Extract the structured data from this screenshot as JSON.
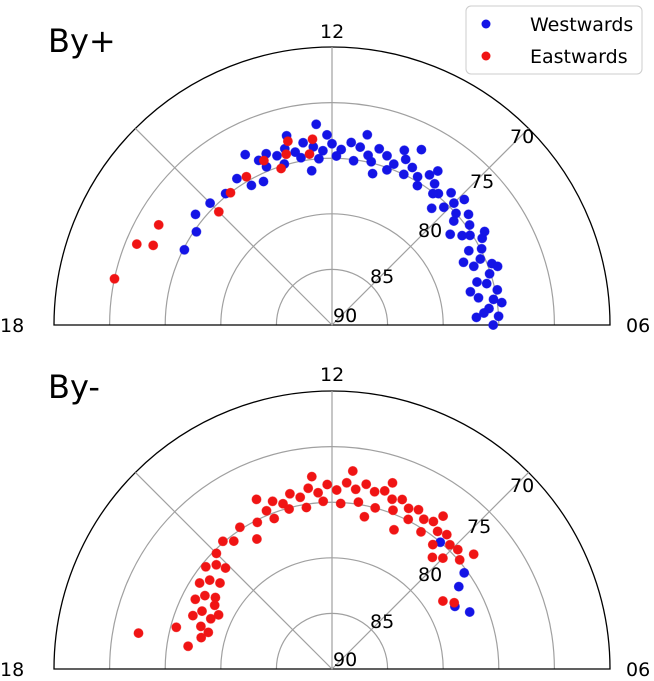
{
  "colors": {
    "westwards": "#1414e6",
    "eastwards": "#f01414",
    "grid": "#a0a0a0",
    "frame": "#000000"
  },
  "legend": {
    "placement": "top-right",
    "entries": [
      "Westwards",
      "Eastwards"
    ]
  },
  "chart_data": [
    {
      "type": "scatter",
      "projection": "polar-half (MLT vs magnetic latitude)",
      "title": "By+",
      "mlt_ticks": [
        "18",
        "12",
        "06"
      ],
      "lat_ticks": [
        "70",
        "75",
        "80",
        "85",
        "90"
      ],
      "lat_range": [
        65,
        90
      ],
      "mlt_range": [
        6,
        18
      ],
      "series": [
        {
          "name": "Westwards",
          "points": [
            [
              13.6,
              73.8
            ],
            [
              13.4,
              73.5
            ],
            [
              13.2,
              74.0
            ],
            [
              13.0,
              73.6
            ],
            [
              12.8,
              74.1
            ],
            [
              12.6,
              73.4
            ],
            [
              12.4,
              73.9
            ],
            [
              12.2,
              74.3
            ],
            [
              12.0,
              73.7
            ],
            [
              11.8,
              74.2
            ],
            [
              11.6,
              73.5
            ],
            [
              11.4,
              73.8
            ],
            [
              11.2,
              74.4
            ],
            [
              11.0,
              73.6
            ],
            [
              10.8,
              74.0
            ],
            [
              10.6,
              74.5
            ],
            [
              10.4,
              73.7
            ],
            [
              10.2,
              74.1
            ],
            [
              10.0,
              74.6
            ],
            [
              9.8,
              73.9
            ],
            [
              9.6,
              74.3
            ],
            [
              9.4,
              74.8
            ],
            [
              9.2,
              74.0
            ],
            [
              9.0,
              74.5
            ],
            [
              8.8,
              75.0
            ],
            [
              8.6,
              74.2
            ],
            [
              8.4,
              74.7
            ],
            [
              8.2,
              75.2
            ],
            [
              8.0,
              74.4
            ],
            [
              7.8,
              74.9
            ],
            [
              7.6,
              75.4
            ],
            [
              7.4,
              74.6
            ],
            [
              7.2,
              75.1
            ],
            [
              7.0,
              75.6
            ],
            [
              6.8,
              74.8
            ],
            [
              6.6,
              75.3
            ],
            [
              6.4,
              75.8
            ],
            [
              6.2,
              75.0
            ],
            [
              6.0,
              75.5
            ],
            [
              13.5,
              74.6
            ],
            [
              13.1,
              74.9
            ],
            [
              12.7,
              74.7
            ],
            [
              12.3,
              75.0
            ],
            [
              11.9,
              74.8
            ],
            [
              11.5,
              75.1
            ],
            [
              11.1,
              74.9
            ],
            [
              10.7,
              75.2
            ],
            [
              10.3,
              75.0
            ],
            [
              9.9,
              75.3
            ],
            [
              9.5,
              75.1
            ],
            [
              9.1,
              75.4
            ],
            [
              8.7,
              75.6
            ],
            [
              8.3,
              75.8
            ],
            [
              7.9,
              76.0
            ],
            [
              7.5,
              76.2
            ],
            [
              7.1,
              76.4
            ],
            [
              6.7,
              76.6
            ],
            [
              6.3,
              76.3
            ],
            [
              13.8,
              72.8
            ],
            [
              12.9,
              72.5
            ],
            [
              12.1,
              72.9
            ],
            [
              11.3,
              72.6
            ],
            [
              10.5,
              73.0
            ],
            [
              9.7,
              73.2
            ],
            [
              8.9,
              73.6
            ],
            [
              8.1,
              73.9
            ],
            [
              7.3,
              74.2
            ],
            [
              6.5,
              74.6
            ],
            [
              14.2,
              74.3
            ],
            [
              14.6,
              74.8
            ],
            [
              15.0,
              74.5
            ],
            [
              15.4,
              74.2
            ],
            [
              14.0,
              75.5
            ],
            [
              13.7,
              75.7
            ],
            [
              12.5,
              76.0
            ],
            [
              11.0,
              75.9
            ],
            [
              15.7,
              75.2
            ],
            [
              16.2,
              75.1
            ],
            [
              12.3,
              71.9
            ],
            [
              10.2,
              72.3
            ],
            [
              9.3,
              76.2
            ],
            [
              8.5,
              76.6
            ],
            [
              7.7,
              76.9
            ],
            [
              6.9,
              77.2
            ],
            [
              6.2,
              77.0
            ]
          ]
        },
        {
          "name": "Eastwards",
          "points": [
            [
              13.0,
              74.1
            ],
            [
              13.5,
              74.0
            ],
            [
              14.0,
              74.6
            ],
            [
              14.5,
              75.0
            ],
            [
              13.2,
              75.2
            ],
            [
              12.5,
              74.5
            ],
            [
              15.0,
              75.6
            ],
            [
              16.0,
              72.0
            ],
            [
              16.4,
              72.4
            ],
            [
              16.5,
              71.0
            ],
            [
              17.2,
              70.0
            ],
            [
              12.4,
              73.2
            ],
            [
              12.9,
              73.0
            ]
          ]
        }
      ]
    },
    {
      "type": "scatter",
      "projection": "polar-half (MLT vs magnetic latitude)",
      "title": "By-",
      "mlt_ticks": [
        "18",
        "12",
        "06"
      ],
      "lat_ticks": [
        "70",
        "75",
        "80",
        "85",
        "90"
      ],
      "lat_range": [
        65,
        90
      ],
      "mlt_range": [
        6,
        18
      ],
      "series": [
        {
          "name": "Westwards",
          "points": [
            [
              9.3,
              75.0
            ],
            [
              8.4,
              75.3
            ],
            [
              8.2,
              76.4
            ],
            [
              7.5,
              76.6
            ],
            [
              7.8,
              77.6
            ]
          ]
        },
        {
          "name": "Eastwards",
          "points": [
            [
              13.5,
              74.6
            ],
            [
              13.3,
              74.0
            ],
            [
              13.1,
              74.5
            ],
            [
              12.9,
              73.8
            ],
            [
              12.7,
              74.3
            ],
            [
              12.5,
              73.6
            ],
            [
              12.3,
              74.1
            ],
            [
              12.1,
              73.4
            ],
            [
              11.9,
              73.9
            ],
            [
              11.7,
              73.2
            ],
            [
              11.5,
              73.7
            ],
            [
              11.3,
              73.1
            ],
            [
              11.1,
              73.6
            ],
            [
              10.9,
              73.3
            ],
            [
              10.7,
              73.8
            ],
            [
              10.5,
              73.5
            ],
            [
              10.3,
              74.0
            ],
            [
              10.1,
              73.7
            ],
            [
              9.9,
              74.2
            ],
            [
              9.7,
              73.9
            ],
            [
              9.5,
              74.4
            ],
            [
              9.3,
              74.1
            ],
            [
              9.1,
              74.6
            ],
            [
              8.9,
              74.4
            ],
            [
              8.7,
              74.9
            ],
            [
              13.8,
              75.2
            ],
            [
              13.4,
              75.5
            ],
            [
              13.0,
              75.1
            ],
            [
              12.6,
              75.3
            ],
            [
              12.2,
              74.9
            ],
            [
              11.8,
              75.1
            ],
            [
              11.4,
              74.8
            ],
            [
              11.0,
              75.0
            ],
            [
              10.6,
              74.7
            ],
            [
              10.2,
              74.9
            ],
            [
              9.8,
              75.3
            ],
            [
              9.4,
              75.6
            ],
            [
              9.0,
              75.9
            ],
            [
              14.2,
              74.8
            ],
            [
              14.5,
              75.5
            ],
            [
              14.7,
              74.9
            ],
            [
              15.0,
              75.3
            ],
            [
              15.2,
              76.0
            ],
            [
              15.4,
              75.4
            ],
            [
              15.6,
              76.4
            ],
            [
              15.8,
              75.8
            ],
            [
              16.0,
              76.8
            ],
            [
              16.2,
              76.2
            ],
            [
              16.4,
              77.2
            ],
            [
              16.6,
              76.6
            ],
            [
              16.8,
              77.6
            ],
            [
              15.1,
              76.8
            ],
            [
              15.5,
              77.3
            ],
            [
              16.1,
              78.0
            ],
            [
              16.5,
              78.2
            ],
            [
              16.9,
              78.4
            ],
            [
              17.1,
              77.9
            ],
            [
              16.3,
              78.7
            ],
            [
              15.9,
              77.7
            ],
            [
              17.3,
              72.3
            ],
            [
              17.0,
              75.5
            ],
            [
              17.4,
              76.9
            ],
            [
              14.0,
              76.5
            ],
            [
              13.6,
              73.3
            ],
            [
              12.4,
              72.6
            ],
            [
              11.6,
              72.1
            ],
            [
              10.8,
              72.4
            ],
            [
              9.6,
              73.0
            ],
            [
              8.6,
              73.6
            ],
            [
              10.4,
              76.3
            ],
            [
              11.2,
              76.0
            ],
            [
              9.2,
              76.5
            ],
            [
              7.9,
              77.5
            ],
            [
              8.1,
              78.3
            ]
          ]
        }
      ]
    }
  ]
}
